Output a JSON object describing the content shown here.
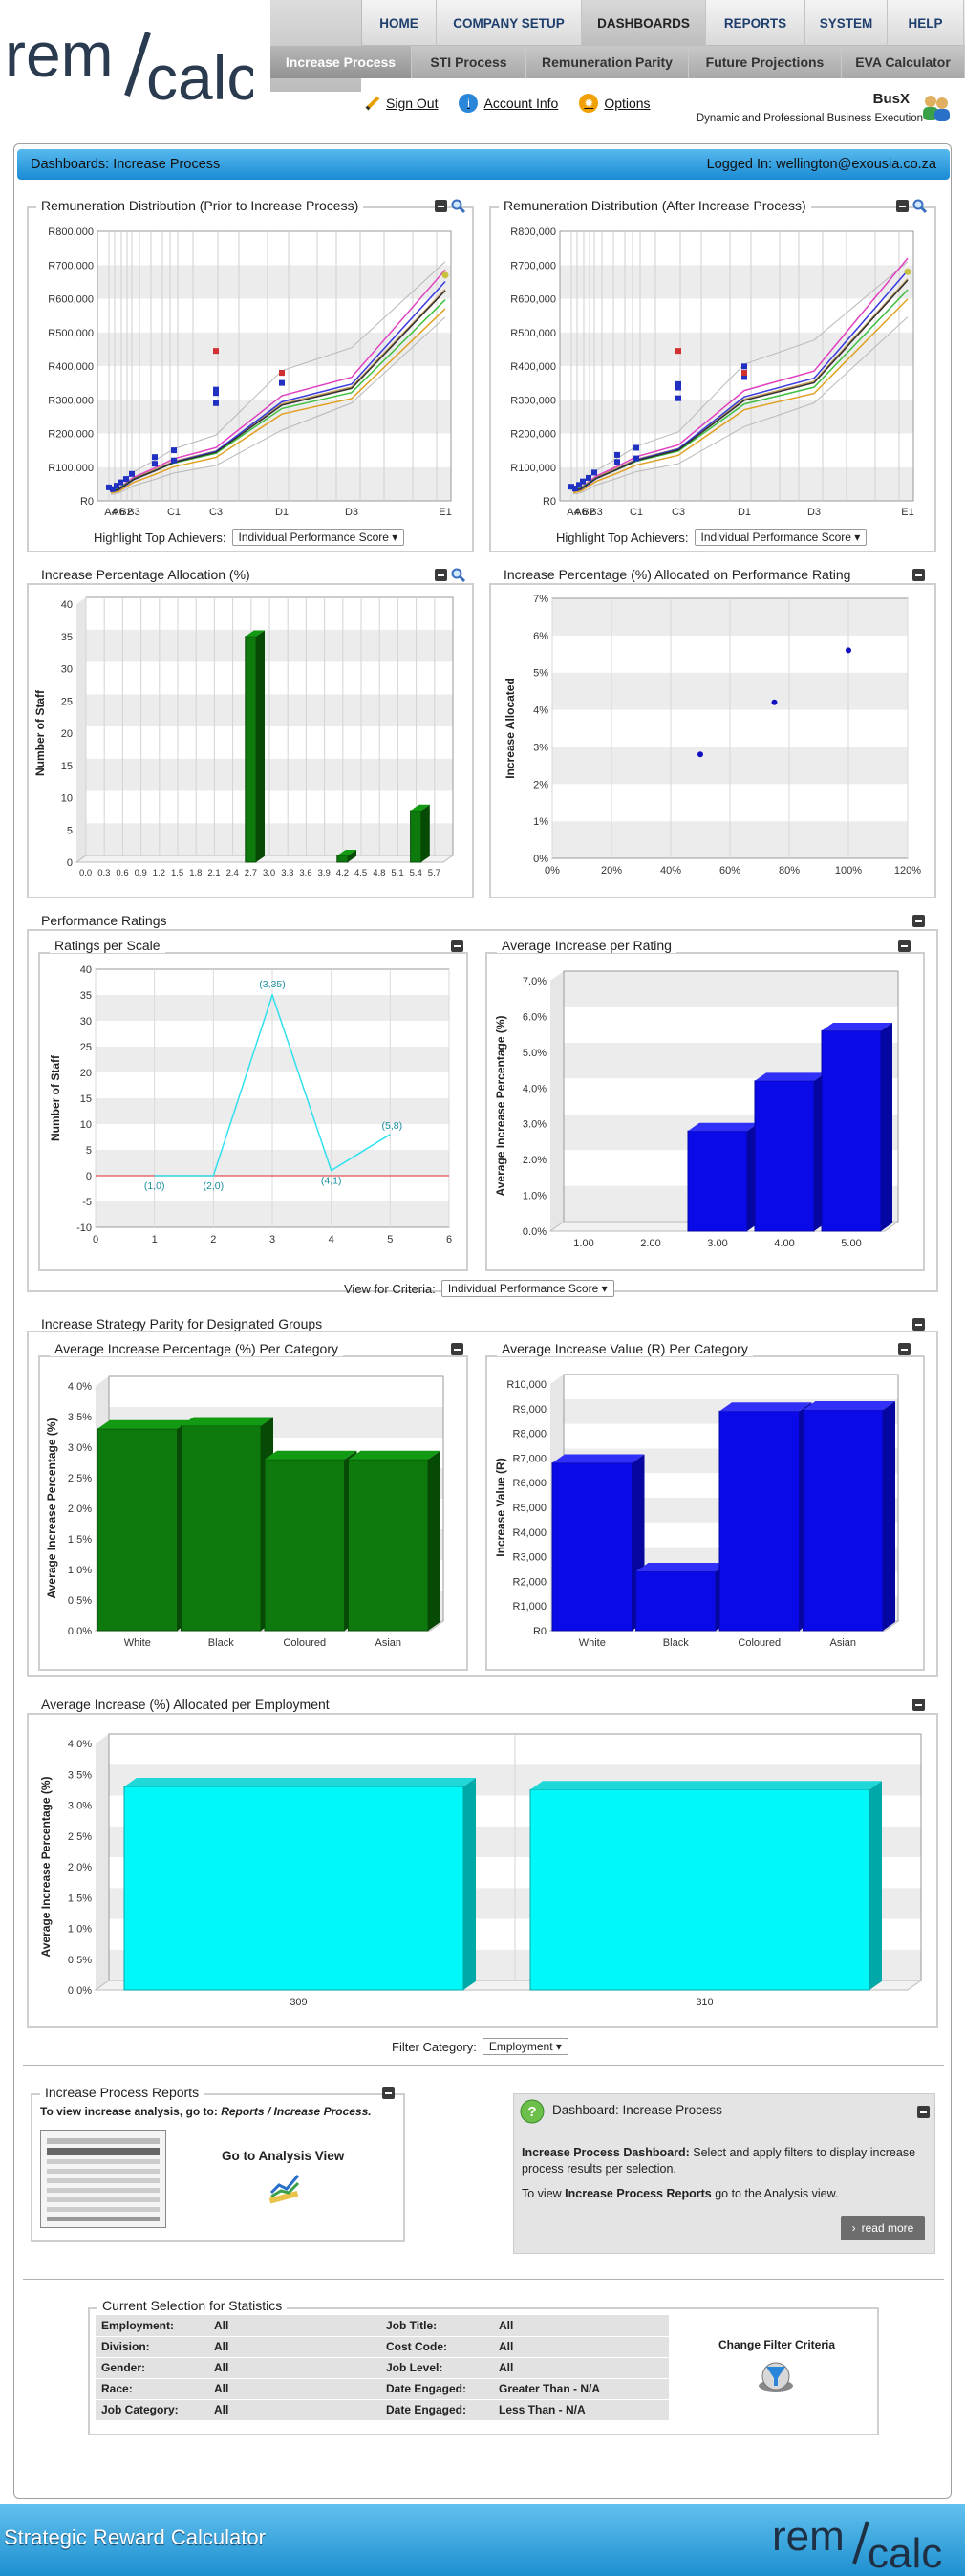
{
  "nav": {
    "top": [
      "HOME",
      "COMPANY SETUP",
      "DASHBOARDS",
      "REPORTS",
      "SYSTEM",
      "HELP"
    ],
    "top_active": 2,
    "sub": [
      "Increase Process",
      "STI Process",
      "Remuneration Parity",
      "Future Projections",
      "EVA Calculator"
    ],
    "sub_active": 0
  },
  "user_links": {
    "signout": "Sign Out",
    "account": "Account Info",
    "options": "Options"
  },
  "brand": {
    "name": "BusX",
    "tagline": "Dynamic and Professional Business Execution",
    "footer_title": "Strategic Reward Calculator"
  },
  "page": {
    "title": "Dashboards: Increase Process",
    "logged_in": "Logged In: wellington@exousia.co.za"
  },
  "colors": {
    "accent": "#1a8bd4",
    "green": "#0e7a0e",
    "blue": "#1010e0",
    "cyan": "#00f5f5"
  },
  "panels": {
    "rem_prior": "Remuneration Distribution (Prior to Increase Process)",
    "rem_after": "Remuneration Distribution (After Increase Process)",
    "highlight_label": "Highlight Top Achievers:",
    "highlight_value": "Individual Performance Score",
    "inc_alloc": "Increase Percentage Allocation (%)",
    "inc_perf": "Increase Percentage (%) Allocated on Performance Rating",
    "perf_ratings": "Performance Ratings",
    "ratings_scale": "Ratings per Scale",
    "avg_rating": "Average Increase per Rating",
    "view_criteria_label": "View for Criteria:",
    "view_criteria_value": "Individual Performance Score",
    "parity": "Increase Strategy Parity for Designated Groups",
    "avg_pct_cat": "Average Increase Percentage (%) Per Category",
    "avg_val_cat": "Average Increase Value (R) Per Category",
    "employment": "Average Increase (%) Allocated per Employment",
    "filter_label": "Filter Category:",
    "filter_value": "Employment"
  },
  "reports": {
    "title": "Increase Process Reports",
    "text_prefix": "To view increase analysis, go to: ",
    "text_path": "Reports / Increase Process.",
    "link": "Go to Analysis View"
  },
  "info": {
    "title": "Dashboard: Increase Process",
    "bold1": "Increase Process Dashboard:",
    "text1": " Select and apply filters to display increase process results per selection.",
    "text2_prefix": "To view ",
    "text2_bold": "Increase Process Reports",
    "text2_suffix": " go to the Analysis view.",
    "read_more": "read more"
  },
  "stats": {
    "title": "Current Selection for Statistics",
    "left": [
      [
        "Employment:",
        "All"
      ],
      [
        "Division:",
        "All"
      ],
      [
        "Gender:",
        "All"
      ],
      [
        "Race:",
        "All"
      ],
      [
        "Job Category:",
        "All"
      ]
    ],
    "right": [
      [
        "Job Title:",
        "All"
      ],
      [
        "Cost Code:",
        "All"
      ],
      [
        "Job Level:",
        "All"
      ],
      [
        "Date Engaged:",
        "Greater Than - N/A"
      ],
      [
        "Date Engaged:",
        "Less Than - N/A"
      ]
    ],
    "change": "Change Filter Criteria"
  },
  "chart_data": [
    {
      "id": "rem_prior",
      "type": "line",
      "title": "Remuneration Distribution (Prior to Increase Process)",
      "y_ticks": [
        "R0",
        "R100,000",
        "R200,000",
        "R300,000",
        "R400,000",
        "R500,000",
        "R600,000",
        "R700,000",
        "R800,000"
      ],
      "ylim": [
        0,
        800000
      ],
      "x_labels": [
        "A4",
        "A6",
        "B2",
        "B3",
        "C1",
        "C3",
        "D1",
        "D3",
        "E1"
      ],
      "series_approx": {
        "median": [
          40000,
          45000,
          60000,
          85000,
          110000,
          140000,
          300000,
          350000,
          620000
        ]
      }
    },
    {
      "id": "rem_after",
      "type": "line",
      "title": "Remuneration Distribution (After Increase Process)",
      "y_ticks": [
        "R0",
        "R100,000",
        "R200,000",
        "R300,000",
        "R400,000",
        "R500,000",
        "R600,000",
        "R700,000",
        "R800,000"
      ],
      "ylim": [
        0,
        800000
      ],
      "x_labels": [
        "A4",
        "A6",
        "B2",
        "B3",
        "C1",
        "C3",
        "D1",
        "D3",
        "E1"
      ]
    },
    {
      "id": "inc_alloc",
      "type": "bar",
      "categories": [
        "0.0",
        "0.3",
        "0.6",
        "0.9",
        "1.2",
        "1.5",
        "1.8",
        "2.1",
        "2.4",
        "2.7",
        "3.0",
        "3.3",
        "3.6",
        "3.9",
        "4.2",
        "4.5",
        "4.8",
        "5.1",
        "5.4",
        "5.7"
      ],
      "values": [
        0,
        0,
        0,
        0,
        0,
        0,
        0,
        0,
        0,
        35,
        0,
        0,
        0,
        0,
        1,
        0,
        0,
        0,
        8,
        0
      ],
      "ylabel": "Number of Staff",
      "ylim": [
        0,
        40
      ],
      "y_ticks": [
        "0",
        "5",
        "10",
        "15",
        "20",
        "25",
        "30",
        "35",
        "40"
      ]
    },
    {
      "id": "inc_perf",
      "type": "scatter",
      "x": [
        50,
        75,
        100
      ],
      "y": [
        2.8,
        4.2,
        5.6
      ],
      "ylabel": "Increase Allocated",
      "x_ticks": [
        "0%",
        "20%",
        "40%",
        "60%",
        "80%",
        "100%",
        "120%"
      ],
      "y_ticks": [
        "0%",
        "1%",
        "2%",
        "3%",
        "4%",
        "5%",
        "6%",
        "7%"
      ],
      "xlim": [
        0,
        120
      ],
      "ylim": [
        0,
        7
      ]
    },
    {
      "id": "ratings_scale",
      "type": "line",
      "x": [
        1,
        2,
        3,
        4,
        5
      ],
      "y": [
        0,
        0,
        35,
        1,
        8
      ],
      "point_labels": [
        "(1,0)",
        "(2,0)",
        "(3,35)",
        "(4,1)",
        "(5,8)"
      ],
      "ylabel": "Number of Staff",
      "xlim": [
        0,
        6
      ],
      "ylim": [
        -10,
        40
      ],
      "x_ticks": [
        "0",
        "1",
        "2",
        "3",
        "4",
        "5",
        "6"
      ],
      "y_ticks": [
        "-10",
        "-5",
        "0",
        "5",
        "10",
        "15",
        "20",
        "25",
        "30",
        "35",
        "40"
      ]
    },
    {
      "id": "avg_rating",
      "type": "bar",
      "categories": [
        "1.00",
        "2.00",
        "3.00",
        "4.00",
        "5.00"
      ],
      "values": [
        0,
        0,
        2.8,
        4.2,
        5.6
      ],
      "ylabel": "Average Increase Percentage (%)",
      "ylim": [
        0,
        7
      ],
      "y_ticks": [
        "0.0%",
        "1.0%",
        "2.0%",
        "3.0%",
        "4.0%",
        "5.0%",
        "6.0%",
        "7.0%"
      ]
    },
    {
      "id": "avg_pct_cat",
      "type": "bar",
      "categories": [
        "White",
        "Black",
        "Coloured",
        "Asian"
      ],
      "values": [
        3.3,
        3.35,
        2.8,
        2.8
      ],
      "ylabel": "Average Increase Percentage (%)",
      "ylim": [
        0,
        4
      ],
      "y_ticks": [
        "0.0%",
        "0.5%",
        "1.0%",
        "1.5%",
        "2.0%",
        "2.5%",
        "3.0%",
        "3.5%",
        "4.0%"
      ]
    },
    {
      "id": "avg_val_cat",
      "type": "bar",
      "categories": [
        "White",
        "Black",
        "Coloured",
        "Asian"
      ],
      "values": [
        6800,
        2400,
        8900,
        8950
      ],
      "ylabel": "Increase Value (R)",
      "ylim": [
        0,
        10000
      ],
      "y_ticks": [
        "R0",
        "R1,000",
        "R2,000",
        "R3,000",
        "R4,000",
        "R5,000",
        "R6,000",
        "R7,000",
        "R8,000",
        "R9,000",
        "R10,000"
      ]
    },
    {
      "id": "employment",
      "type": "bar",
      "categories": [
        "309",
        "310"
      ],
      "values": [
        3.3,
        3.25
      ],
      "ylabel": "Average Increase Percentage (%)",
      "ylim": [
        0,
        4
      ],
      "y_ticks": [
        "0.0%",
        "0.5%",
        "1.0%",
        "1.5%",
        "2.0%",
        "2.5%",
        "3.0%",
        "3.5%",
        "4.0%"
      ]
    }
  ]
}
